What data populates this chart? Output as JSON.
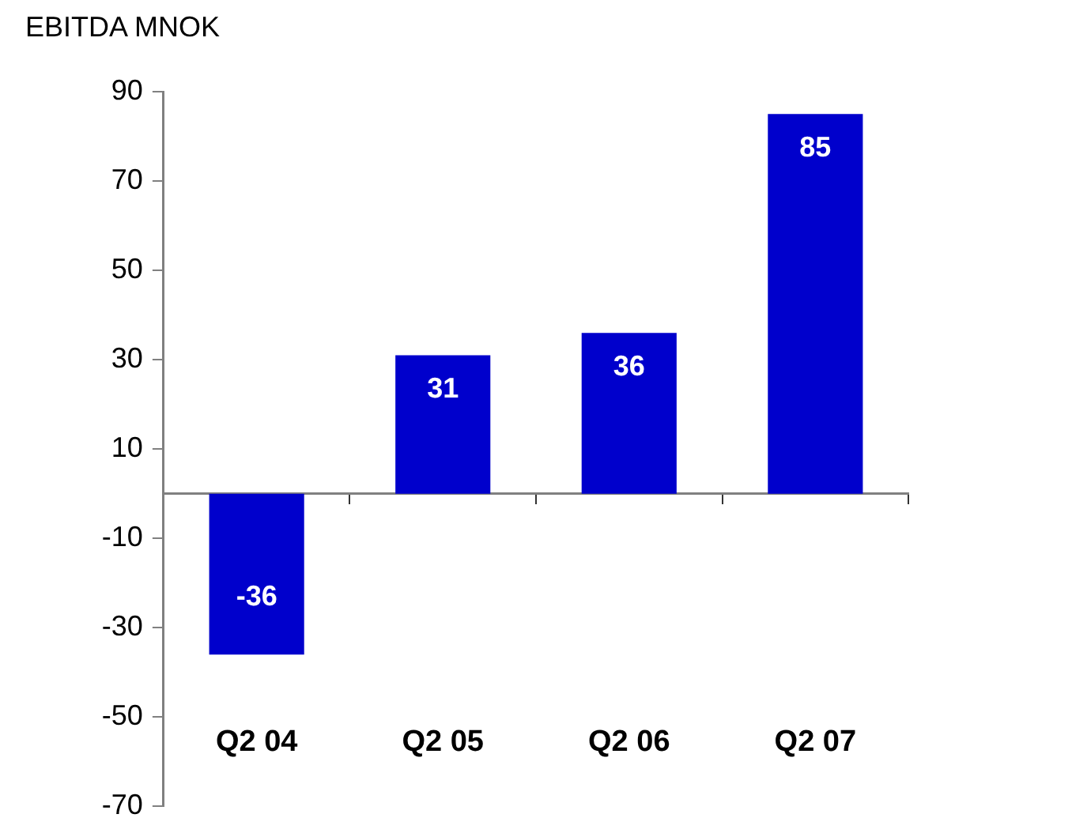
{
  "chart_data": {
    "type": "bar",
    "ylabel": "EBITDA MNOK",
    "categories": [
      "Q2 04",
      "Q2 05",
      "Q2 06",
      "Q2 07"
    ],
    "values": [
      -36,
      31,
      36,
      85
    ],
    "color": "#0000cc",
    "ylim": [
      -70,
      90
    ],
    "yticks": [
      -70,
      -50,
      -30,
      -10,
      10,
      30,
      50,
      70,
      90
    ],
    "data_labels": true
  }
}
